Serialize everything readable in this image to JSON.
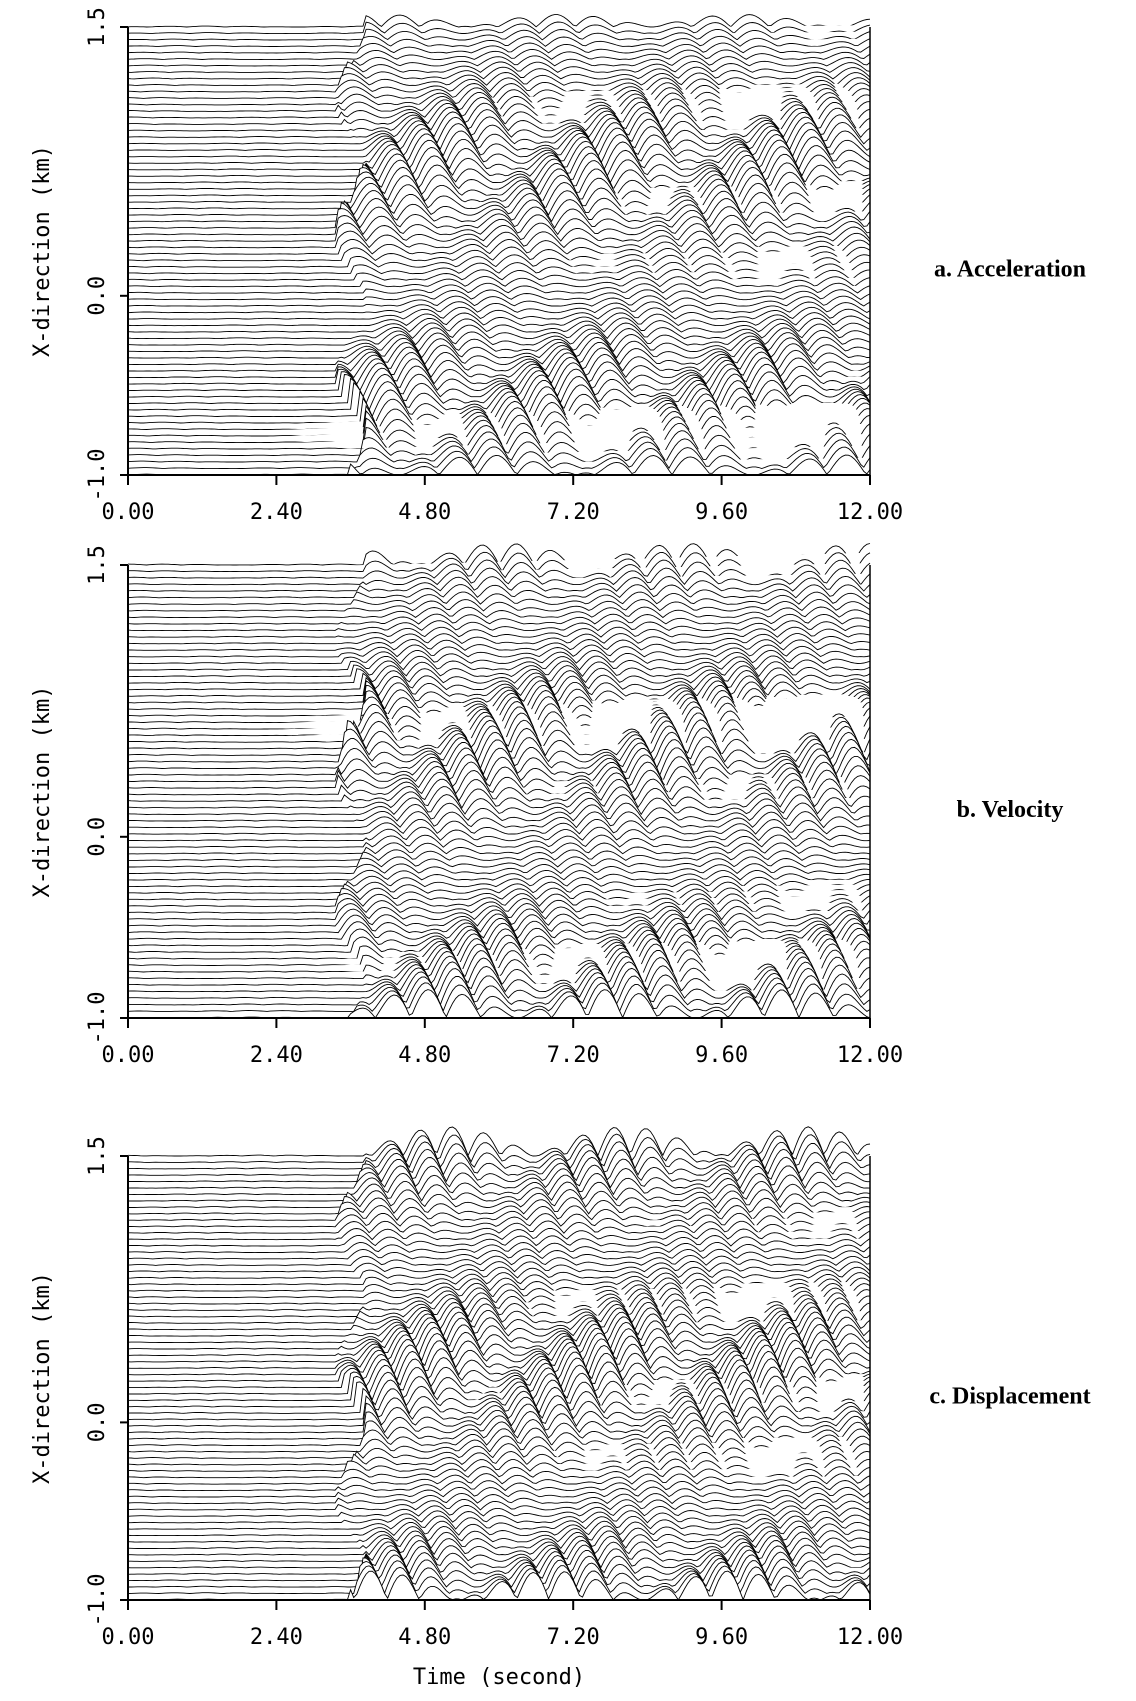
{
  "chart_data": [
    {
      "type": "waveform",
      "annotation": "a. Acceleration",
      "ylabel": "X-direction (km)",
      "xlim": [
        0,
        12
      ],
      "ylim": [
        -1,
        1.5
      ],
      "xticks": [
        {
          "value": 0,
          "label": "0.00"
        },
        {
          "value": 2.4,
          "label": "2.40"
        },
        {
          "value": 4.8,
          "label": "4.80"
        },
        {
          "value": 7.2,
          "label": "7.20"
        },
        {
          "value": 9.6,
          "label": "9.60"
        },
        {
          "value": 12,
          "label": "12.00"
        }
      ],
      "yticks": [
        {
          "value": -1,
          "label": "-1.0"
        },
        {
          "value": 0,
          "label": "0.0"
        },
        1.5
      ]
    },
    {
      "type": "waveform",
      "annotation": "b. Velocity",
      "ylabel": "X-direction (km)",
      "xlim": [
        0,
        12
      ],
      "ylim": [
        -1,
        1.5
      ],
      "xticks": [
        {
          "value": 0,
          "label": "0.00"
        },
        {
          "value": 2.4,
          "label": "2.40"
        },
        {
          "value": 4.8,
          "label": "4.80"
        },
        {
          "value": 7.2,
          "label": "7.20"
        },
        {
          "value": 9.6,
          "label": "9.60"
        },
        {
          "value": 12,
          "label": "12.00"
        }
      ],
      "yticks": [
        {
          "value": -1,
          "label": "-1.0"
        },
        {
          "value": 0,
          "label": "0.0"
        },
        1.5
      ]
    },
    {
      "type": "waveform",
      "annotation": "c. Displacement",
      "ylabel": "X-direction (km)",
      "xlabel": "Time (second)",
      "xlim": [
        0,
        12
      ],
      "ylim": [
        -1,
        1.5
      ],
      "xticks": [
        {
          "value": 0,
          "label": "0.00"
        },
        {
          "value": 2.4,
          "label": "2.40"
        },
        {
          "value": 4.8,
          "label": "4.80"
        },
        {
          "value": 7.2,
          "label": "7.20"
        },
        {
          "value": 9.6,
          "label": "9.60"
        },
        {
          "value": 12,
          "label": "12.00"
        }
      ],
      "yticks": [
        {
          "value": -1,
          "label": "-1.0"
        },
        {
          "value": 0,
          "label": "0.0"
        },
        1.5
      ]
    }
  ]
}
